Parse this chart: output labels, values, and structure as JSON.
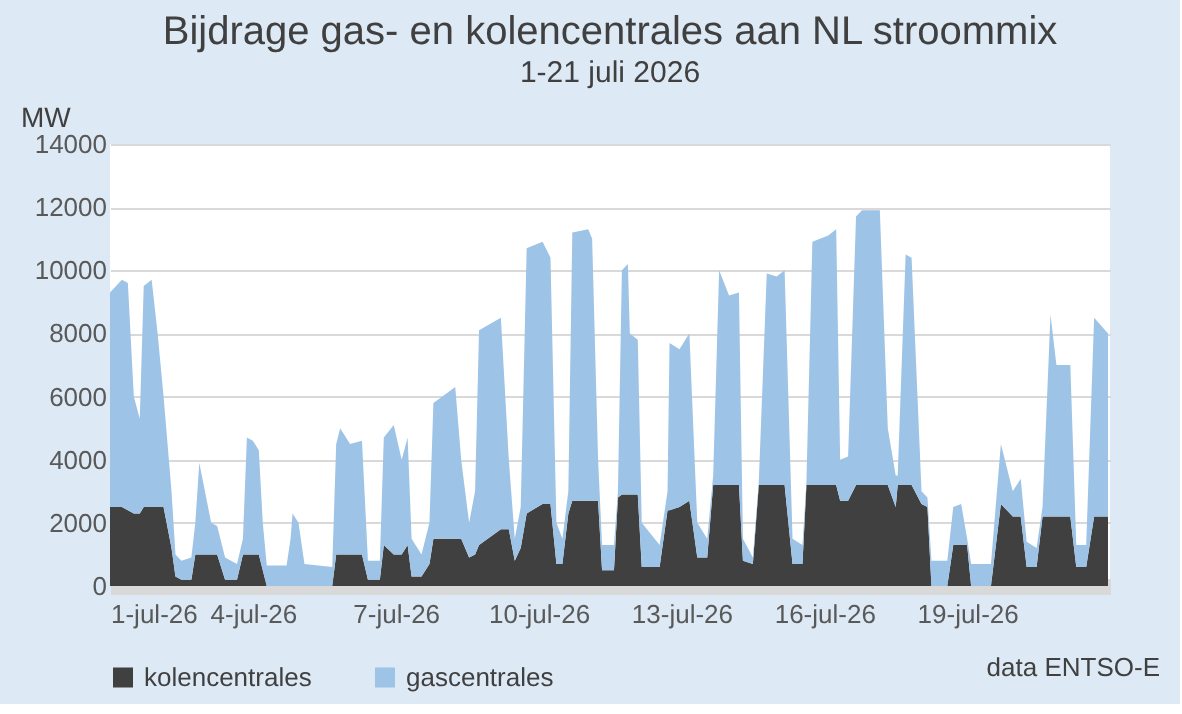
{
  "chart_data": {
    "type": "area",
    "stacked": true,
    "title": "Bijdrage gas- en kolencentrales aan NL stroommix",
    "subtitle": "1-21 juli 2026",
    "ylabel": "MW",
    "annotations": [
      "data ENTSO-E"
    ],
    "x": [
      "2026-07-01T00:00",
      "2026-07-01T06:00",
      "2026-07-01T09:00",
      "2026-07-01T12:00",
      "2026-07-01T15:00",
      "2026-07-01T17:00",
      "2026-07-01T21:00",
      "2026-07-02T00:00",
      "2026-07-02T03:00",
      "2026-07-02T07:00",
      "2026-07-02T09:00",
      "2026-07-02T12:00",
      "2026-07-02T17:00",
      "2026-07-02T19:00",
      "2026-07-02T21:00",
      "2026-07-03T03:00",
      "2026-07-03T06:00",
      "2026-07-03T10:00",
      "2026-07-03T16:00",
      "2026-07-03T19:00",
      "2026-07-03T21:00",
      "2026-07-04T00:00",
      "2026-07-04T03:00",
      "2026-07-04T05:00",
      "2026-07-04T07:00",
      "2026-07-04T17:00",
      "2026-07-04T19:00",
      "2026-07-04T20:00",
      "2026-07-04T23:00",
      "2026-07-05T02:00",
      "2026-07-05T16:00",
      "2026-07-05T18:00",
      "2026-07-05T20:00",
      "2026-07-06T01:00",
      "2026-07-06T07:00",
      "2026-07-06T10:00",
      "2026-07-06T16:00",
      "2026-07-06T18:00",
      "2026-07-06T23:00",
      "2026-07-07T03:00",
      "2026-07-07T06:00",
      "2026-07-07T08:00",
      "2026-07-07T13:00",
      "2026-07-07T17:00",
      "2026-07-07T19:00",
      "2026-07-08T06:00",
      "2026-07-08T09:00",
      "2026-07-08T13:00",
      "2026-07-08T16:00",
      "2026-07-08T18:00",
      "2026-07-09T05:00",
      "2026-07-09T09:00",
      "2026-07-09T12:00",
      "2026-07-09T15:00",
      "2026-07-09T18:00",
      "2026-07-10T02:00",
      "2026-07-10T06:00",
      "2026-07-10T09:00",
      "2026-07-10T12:00",
      "2026-07-10T15:00",
      "2026-07-10T17:00",
      "2026-07-11T01:00",
      "2026-07-11T03:00",
      "2026-07-11T06:00",
      "2026-07-11T08:00",
      "2026-07-11T14:00",
      "2026-07-11T16:00",
      "2026-07-11T18:00",
      "2026-07-11T21:00",
      "2026-07-11T22:00",
      "2026-07-12T02:00",
      "2026-07-12T04:00",
      "2026-07-12T13:00",
      "2026-07-12T17:00",
      "2026-07-12T18:00",
      "2026-07-12T23:00",
      "2026-07-13T04:00",
      "2026-07-13T08:00",
      "2026-07-13T13:00",
      "2026-07-13T16:00",
      "2026-07-13T19:00",
      "2026-07-14T00:00",
      "2026-07-14T05:00",
      "2026-07-14T07:00",
      "2026-07-14T12:00",
      "2026-07-14T15:00",
      "2026-07-14T19:00",
      "2026-07-15T00:00",
      "2026-07-15T04:00",
      "2026-07-15T08:00",
      "2026-07-15T13:00",
      "2026-07-15T15:00",
      "2026-07-15T18:00",
      "2026-07-16T02:00",
      "2026-07-16T06:00",
      "2026-07-16T08:00",
      "2026-07-16T12:00",
      "2026-07-16T16:00",
      "2026-07-16T19:00",
      "2026-07-17T04:00",
      "2026-07-17T08:00",
      "2026-07-17T12:00",
      "2026-07-17T13:00",
      "2026-07-17T17:00",
      "2026-07-17T20:00",
      "2026-07-18T01:00",
      "2026-07-18T04:00",
      "2026-07-18T06:00",
      "2026-07-18T14:00",
      "2026-07-18T17:00",
      "2026-07-18T21:00",
      "2026-07-19T00:00",
      "2026-07-19T02:00",
      "2026-07-19T12:00",
      "2026-07-19T17:00",
      "2026-07-19T23:00",
      "2026-07-20T03:00",
      "2026-07-20T06:00",
      "2026-07-20T11:00",
      "2026-07-20T14:00",
      "2026-07-20T18:00",
      "2026-07-20T21:00",
      "2026-07-21T04:00",
      "2026-07-21T07:00",
      "2026-07-21T12:00",
      "2026-07-21T16:00",
      "2026-07-21T23:00"
    ],
    "series": [
      {
        "name": "kolencentrales",
        "color": "#404040",
        "values": [
          2500,
          2500,
          2400,
          2300,
          2300,
          2500,
          2500,
          2500,
          2500,
          1200,
          300,
          200,
          200,
          1000,
          1000,
          1000,
          1000,
          200,
          200,
          1000,
          1000,
          1000,
          1000,
          500,
          0,
          0,
          0,
          0,
          0,
          0,
          0,
          1000,
          1000,
          1000,
          1000,
          200,
          200,
          1300,
          1000,
          1000,
          1300,
          300,
          300,
          700,
          1500,
          1500,
          1500,
          900,
          1000,
          1300,
          1800,
          1800,
          800,
          1200,
          2300,
          2600,
          2600,
          700,
          700,
          2300,
          2700,
          2700,
          2700,
          2700,
          500,
          500,
          2800,
          2900,
          2900,
          2900,
          2900,
          600,
          600,
          2400,
          2400,
          2500,
          2700,
          900,
          900,
          3200,
          3200,
          3200,
          3200,
          800,
          700,
          3200,
          3200,
          3200,
          3200,
          700,
          700,
          3200,
          3200,
          3200,
          3200,
          2700,
          2700,
          3200,
          3200,
          3200,
          3200,
          2500,
          3200,
          3200,
          3200,
          2600,
          2500,
          0,
          0,
          1300,
          1300,
          1300,
          0,
          0,
          2600,
          2200,
          2200,
          600,
          600,
          2200,
          2200,
          2200,
          2200,
          600,
          600,
          2200,
          2200
        ]
      },
      {
        "name": "gascentrales",
        "color": "#9dc3e6",
        "values": [
          6800,
          7200,
          7200,
          3700,
          3000,
          7000,
          7200,
          5500,
          3500,
          1800,
          700,
          600,
          700,
          1000,
          2900,
          1000,
          900,
          700,
          500,
          500,
          3700,
          3600,
          3300,
          1500,
          650,
          650,
          1500,
          2300,
          2000,
          700,
          600,
          3500,
          4000,
          3500,
          3600,
          600,
          600,
          3400,
          4100,
          3000,
          3400,
          1200,
          700,
          1300,
          4300,
          4800,
          2500,
          1100,
          2000,
          6800,
          6700,
          2200,
          700,
          1300,
          8400,
          8300,
          7800,
          1300,
          800,
          700,
          8500,
          8600,
          8300,
          1300,
          800,
          800,
          200,
          7100,
          7300,
          5100,
          4900,
          1400,
          700,
          600,
          5300,
          5000,
          5300,
          1100,
          600,
          300,
          6800,
          6000,
          6100,
          700,
          200,
          100,
          6700,
          6600,
          6800,
          800,
          600,
          100,
          7700,
          7900,
          8100,
          1300,
          1400,
          8500,
          8700,
          8700,
          1800,
          1000,
          300,
          7300,
          7200,
          400,
          300,
          800,
          800,
          1200,
          1300,
          200,
          700,
          700,
          1900,
          800,
          1200,
          800,
          600,
          300,
          6400,
          4800,
          4800,
          700,
          700,
          6300,
          5800
        ]
      }
    ],
    "xlim": [
      "2026-07-01T00:00",
      "2026-07-22T00:00"
    ],
    "xticks": [
      {
        "value": "2026-07-01",
        "label": "1-jul-26"
      },
      {
        "value": "2026-07-04",
        "label": "4-jul-26"
      },
      {
        "value": "2026-07-07",
        "label": "7-jul-26"
      },
      {
        "value": "2026-07-10",
        "label": "10-jul-26"
      },
      {
        "value": "2026-07-13",
        "label": "13-jul-26"
      },
      {
        "value": "2026-07-16",
        "label": "16-jul-26"
      },
      {
        "value": "2026-07-19",
        "label": "19-jul-26"
      }
    ],
    "ylim": [
      0,
      14000
    ],
    "yticks": [
      0,
      2000,
      4000,
      6000,
      8000,
      10000,
      12000,
      14000
    ],
    "grid": "y",
    "legend": "bottom"
  }
}
